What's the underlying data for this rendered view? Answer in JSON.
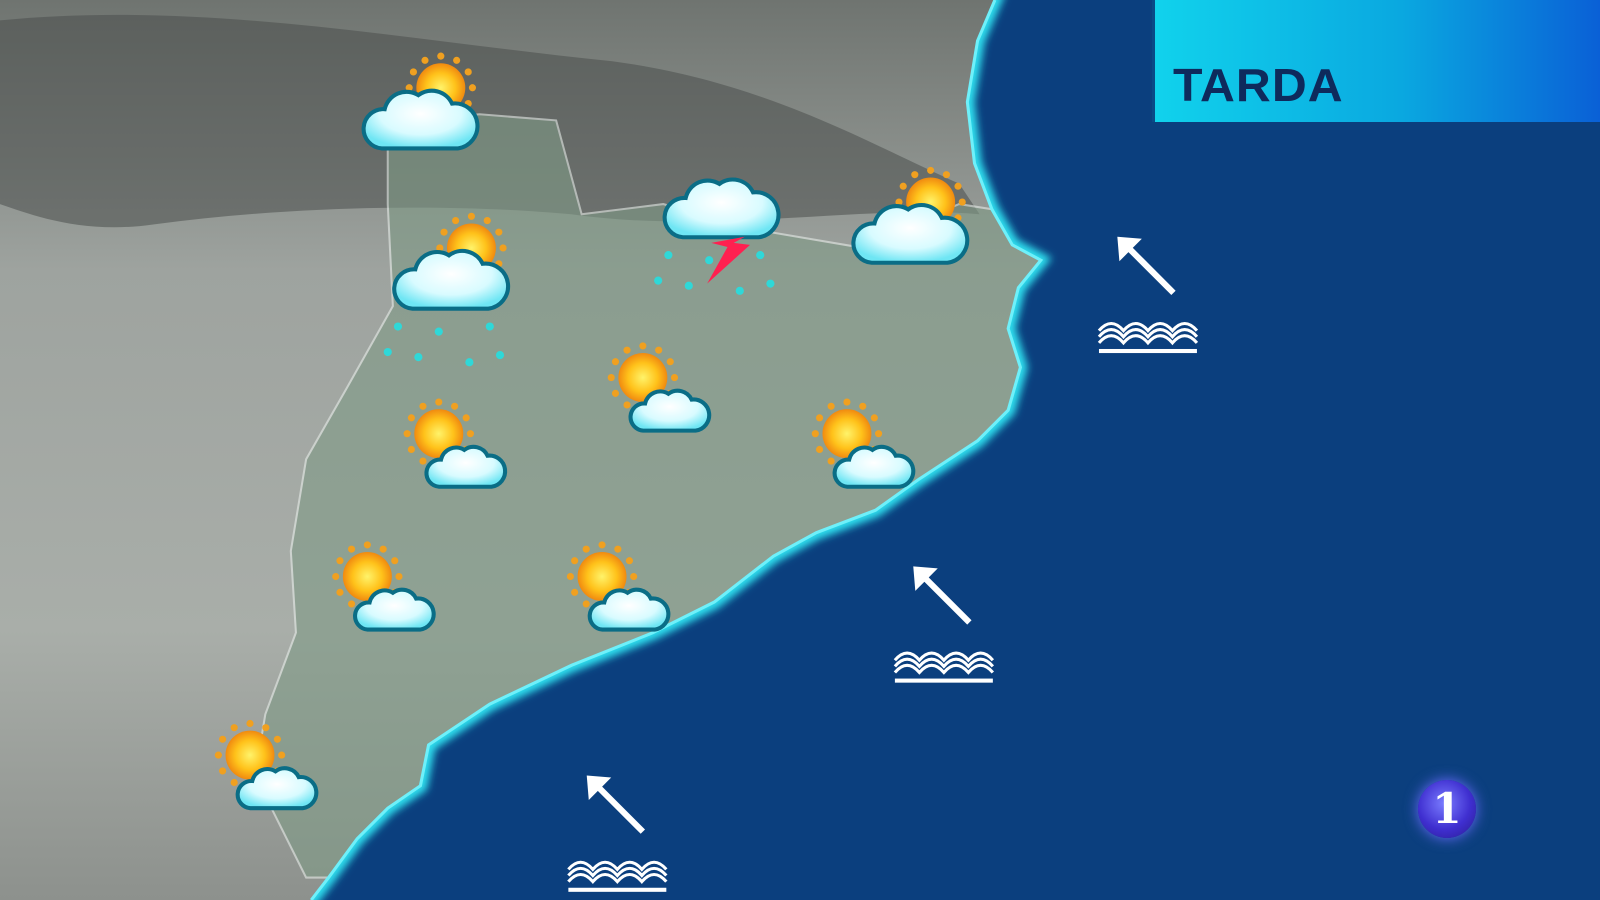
{
  "header": {
    "title": "TARDA"
  },
  "logo": {
    "text": "1"
  },
  "colors": {
    "sea": "#0b3f7e",
    "coast_glow": "#2fe0f0",
    "title_bg_start": "#11d2ec",
    "title_bg_end": "#0a5fd6",
    "title_text": "#0e2a5c"
  },
  "weather_icons": [
    {
      "type": "cloud-sun"
    },
    {
      "type": "cloud-sun-rain"
    },
    {
      "type": "cloud-thunderstorm-rain"
    },
    {
      "type": "cloud-sun"
    },
    {
      "type": "sun-cloud"
    },
    {
      "type": "sun-cloud"
    },
    {
      "type": "sun-cloud"
    },
    {
      "type": "sun-cloud"
    },
    {
      "type": "sun-cloud"
    },
    {
      "type": "sun-cloud"
    }
  ],
  "sea_conditions": [
    {
      "wind_direction": "northwest",
      "sea_state": "waves"
    },
    {
      "wind_direction": "northwest",
      "sea_state": "waves"
    },
    {
      "wind_direction": "northwest",
      "sea_state": "waves"
    }
  ]
}
